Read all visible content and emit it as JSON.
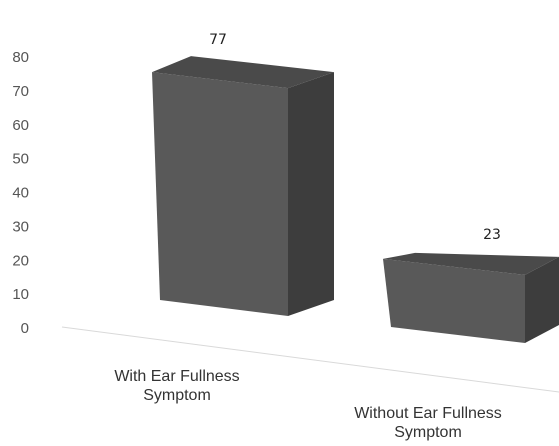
{
  "chart_data": {
    "type": "bar",
    "style": "3d-column",
    "categories": [
      "With Ear Fullness Symptom",
      "Without Ear Fullness Symptom"
    ],
    "category_lines": [
      [
        "With Ear Fullness",
        "Symptom"
      ],
      [
        "Without Ear Fullness",
        "Symptom"
      ]
    ],
    "values": [
      77,
      23
    ],
    "data_labels": [
      "77",
      "23"
    ],
    "ylim": [
      0,
      80
    ],
    "yticks": [
      "0",
      "10",
      "20",
      "30",
      "40",
      "50",
      "60",
      "70",
      "80"
    ],
    "grid": false,
    "legend": "none",
    "colors": {
      "bar_front": "#595959",
      "bar_side": "#3d3d3d",
      "bar_top": "#4a4a4a",
      "baseline": "#d9d9d9"
    }
  }
}
